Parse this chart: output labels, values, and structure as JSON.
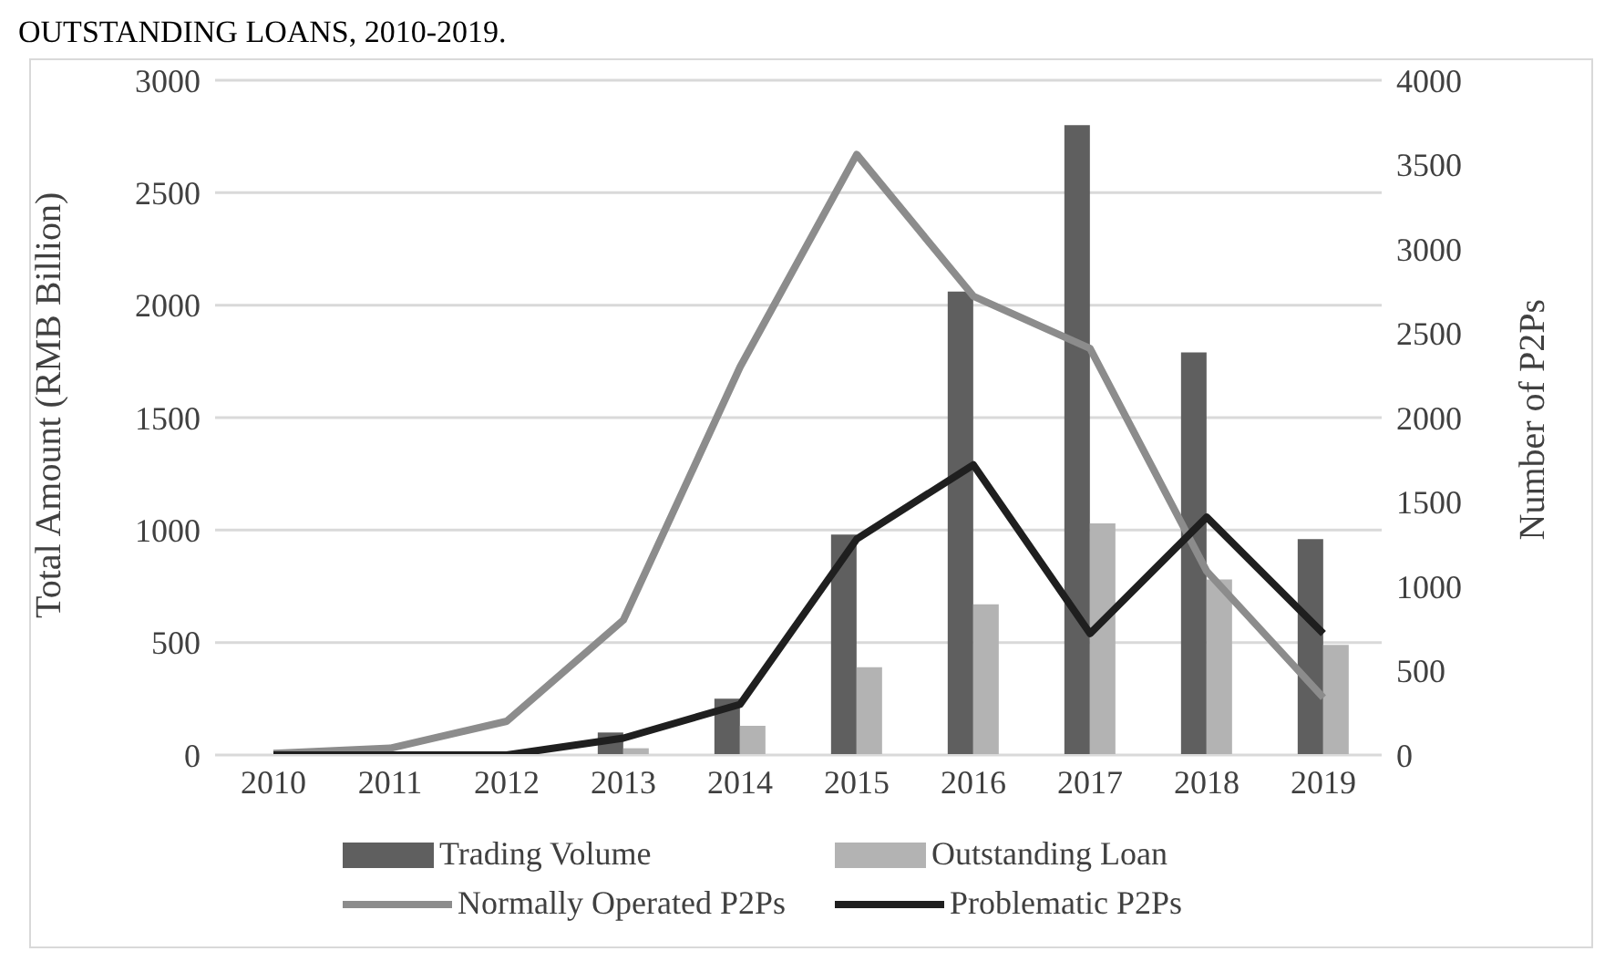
{
  "chart_data": {
    "type": "bar",
    "title": "OUTSTANDING LOANS, 2010-2019.",
    "ylabel": "Total Amount (RMB Billion)",
    "y2label": "Number of P2Ps",
    "categories": [
      "2010",
      "2011",
      "2012",
      "2013",
      "2014",
      "2015",
      "2016",
      "2017",
      "2018",
      "2019"
    ],
    "series": [
      {
        "name": "Trading Volume",
        "color": "#5f5f5f",
        "values": [
          0,
          0,
          0,
          100,
          250,
          980,
          2060,
          2800,
          1790,
          960
        ]
      },
      {
        "name": "Outstanding Loan",
        "color": "#b3b3b3",
        "values": [
          0,
          0,
          0,
          30,
          130,
          390,
          670,
          1030,
          780,
          490
        ]
      },
      {
        "name": "Normally Operated P2Ps",
        "color": "#8c8c8c",
        "type": "line",
        "axis": "y2",
        "values": [
          10,
          40,
          200,
          800,
          2300,
          3560,
          2720,
          2410,
          1090,
          340
        ]
      },
      {
        "name": "Problematic P2Ps",
        "color": "#1f1f1f",
        "type": "line",
        "axis": "y2",
        "values": [
          0,
          0,
          0,
          100,
          300,
          1280,
          1720,
          720,
          1410,
          720
        ]
      }
    ],
    "ylim": [
      0,
      3000
    ],
    "yticks": [
      0,
      500,
      1000,
      1500,
      2000,
      2500,
      3000
    ],
    "y2lim": [
      0,
      4000
    ],
    "y2ticks": [
      0,
      500,
      1000,
      1500,
      2000,
      2500,
      3000,
      3500,
      4000
    ],
    "grid": "y",
    "legend": "bottom",
    "marker": "none",
    "line_style": "solid"
  }
}
